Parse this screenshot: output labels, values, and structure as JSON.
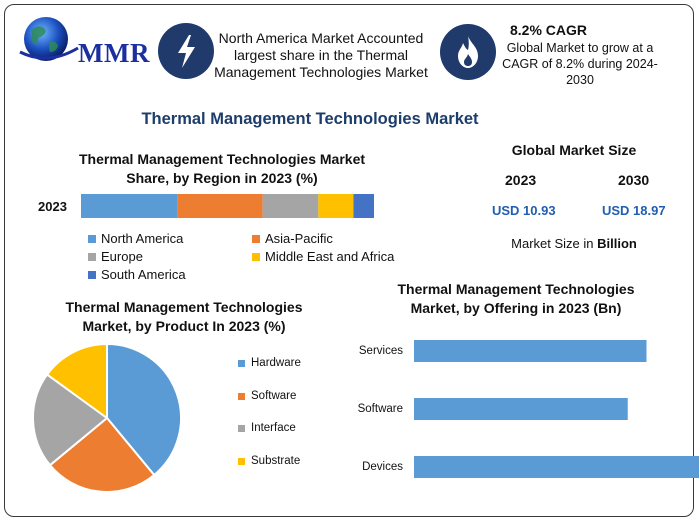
{
  "header": {
    "logo_text": "MMR",
    "highlight_1": "North America Market Accounted largest share in the Thermal Management Technologies Market",
    "cagr_title": "8.2% CAGR",
    "cagr_text": "Global Market to grow at a CAGR of 8.2% during 2024-2030",
    "icons": [
      "lightning-icon",
      "flame-icon"
    ]
  },
  "main_title": "Thermal Management Technologies Market",
  "global_market_size": {
    "title": "Global Market Size",
    "year_a": "2023",
    "year_b": "2030",
    "value_a": "USD 10.93",
    "value_b": "USD 18.97",
    "note_prefix": "Market Size in ",
    "note_unit": "Billion"
  },
  "colors": {
    "north_america": "#5b9bd5",
    "asia_pacific": "#ed7d31",
    "europe": "#a5a5a5",
    "mea": "#ffc000",
    "south_america": "#4472c4",
    "icon_bg": "#1f3a6b",
    "title_blue": "#1d3d6b",
    "value_blue": "#1f5fb0"
  },
  "chart_data": [
    {
      "type": "bar",
      "orientation": "horizontal-stacked",
      "title": "Thermal Management Technologies Market Share, by Region in 2023 (%)",
      "categories": [
        "2023"
      ],
      "series": [
        {
          "name": "North America",
          "values": [
            33
          ]
        },
        {
          "name": "Asia-Pacific",
          "values": [
            29
          ]
        },
        {
          "name": "Europe",
          "values": [
            19
          ]
        },
        {
          "name": "Middle East and Africa",
          "values": [
            12
          ]
        },
        {
          "name": "South America",
          "values": [
            7
          ]
        }
      ],
      "xlim": [
        0,
        100
      ],
      "grid": false,
      "legend": "bottom"
    },
    {
      "type": "pie",
      "title": "Thermal Management Technologies Market, by Product In 2023 (%)",
      "categories": [
        "Hardware",
        "Software",
        "Interface",
        "Substrate"
      ],
      "values": [
        39,
        25,
        21,
        15
      ],
      "legend": "right"
    },
    {
      "type": "bar",
      "orientation": "horizontal",
      "title": "Thermal Management Technologies Market, by Offering in 2023 (Bn)",
      "categories": [
        "Services",
        "Software",
        "Devices"
      ],
      "values": [
        3.1,
        2.85,
        3.8
      ],
      "xlim": [
        0,
        4
      ],
      "grid": false
    }
  ]
}
